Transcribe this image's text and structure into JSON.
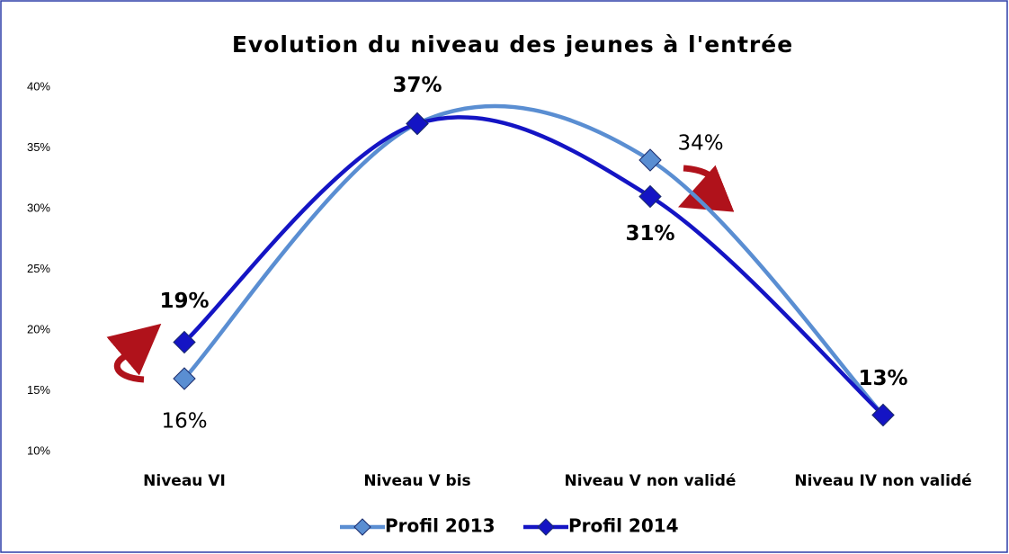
{
  "chart_data": {
    "type": "line",
    "title": "Evolution du niveau des jeunes à l'entrée",
    "categories": [
      "Niveau VI",
      "Niveau V bis",
      "Niveau V non validé",
      "Niveau IV non validé"
    ],
    "series": [
      {
        "name": "Profil 2013",
        "color": "#5a8ed2",
        "values": [
          16,
          37,
          34,
          13
        ],
        "value_labels": [
          "16%",
          null,
          "34%",
          null
        ]
      },
      {
        "name": "Profil 2014",
        "color": "#1414c4",
        "values": [
          19,
          37,
          31,
          13
        ],
        "value_labels": [
          "19%",
          "37%",
          "31%",
          "13%"
        ]
      }
    ],
    "ylim": [
      10,
      40
    ],
    "yticks": [
      {
        "value": 10,
        "label": "10%"
      },
      {
        "value": 15,
        "label": "15%"
      },
      {
        "value": 20,
        "label": "20%"
      },
      {
        "value": 25,
        "label": "25%"
      },
      {
        "value": 30,
        "label": "30%"
      },
      {
        "value": 35,
        "label": "35%"
      },
      {
        "value": 40,
        "label": "40%"
      }
    ],
    "smooth": true,
    "grid": false,
    "legend": "bottom"
  }
}
